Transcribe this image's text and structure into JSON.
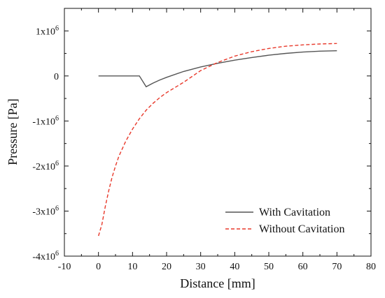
{
  "chart_data": {
    "type": "line",
    "title": "",
    "xlabel": "Distance [mm]",
    "ylabel": "Pressure [Pa]",
    "xlim": [
      -10,
      80
    ],
    "ylim": [
      -4000000,
      1500000
    ],
    "x_ticks": [
      -10,
      0,
      10,
      20,
      30,
      40,
      50,
      60,
      70,
      80
    ],
    "x_tick_labels": [
      "-10",
      "0",
      "10",
      "20",
      "30",
      "40",
      "50",
      "60",
      "70",
      "80"
    ],
    "y_ticks": [
      {
        "value": -4000000,
        "base": "-4x10",
        "exp": "6"
      },
      {
        "value": -3000000,
        "base": "-3x10",
        "exp": "6"
      },
      {
        "value": -2000000,
        "base": "-2x10",
        "exp": "6"
      },
      {
        "value": -1000000,
        "base": "-1x10",
        "exp": "6"
      },
      {
        "value": 0,
        "base": "0",
        "exp": ""
      },
      {
        "value": 1000000,
        "base": "1x10",
        "exp": "6"
      }
    ],
    "grid": false,
    "legend_position": "bottom-right",
    "series": [
      {
        "name": "With Cavitation",
        "color": "#555555",
        "style": "solid",
        "x": [
          0,
          2,
          4,
          6,
          8,
          10,
          12,
          14,
          16,
          18,
          20,
          25,
          30,
          35,
          40,
          45,
          50,
          55,
          60,
          65,
          70
        ],
        "y": [
          0,
          0,
          0,
          0,
          0,
          0,
          0,
          -240000,
          -160000,
          -90000,
          -30000,
          100000,
          200000,
          280000,
          350000,
          410000,
          460000,
          500000,
          530000,
          550000,
          560000
        ]
      },
      {
        "name": "Without Cavitation",
        "color": "#e8392b",
        "style": "dashed",
        "x": [
          0,
          1,
          2,
          3,
          4,
          5,
          6,
          8,
          10,
          12,
          14,
          16,
          18,
          20,
          25,
          30,
          35,
          40,
          45,
          50,
          55,
          60,
          65,
          70
        ],
        "y": [
          -3550000,
          -3300000,
          -2900000,
          -2550000,
          -2250000,
          -2000000,
          -1780000,
          -1450000,
          -1180000,
          -950000,
          -760000,
          -610000,
          -480000,
          -370000,
          -140000,
          120000,
          300000,
          440000,
          540000,
          610000,
          660000,
          690000,
          710000,
          720000
        ]
      }
    ]
  }
}
